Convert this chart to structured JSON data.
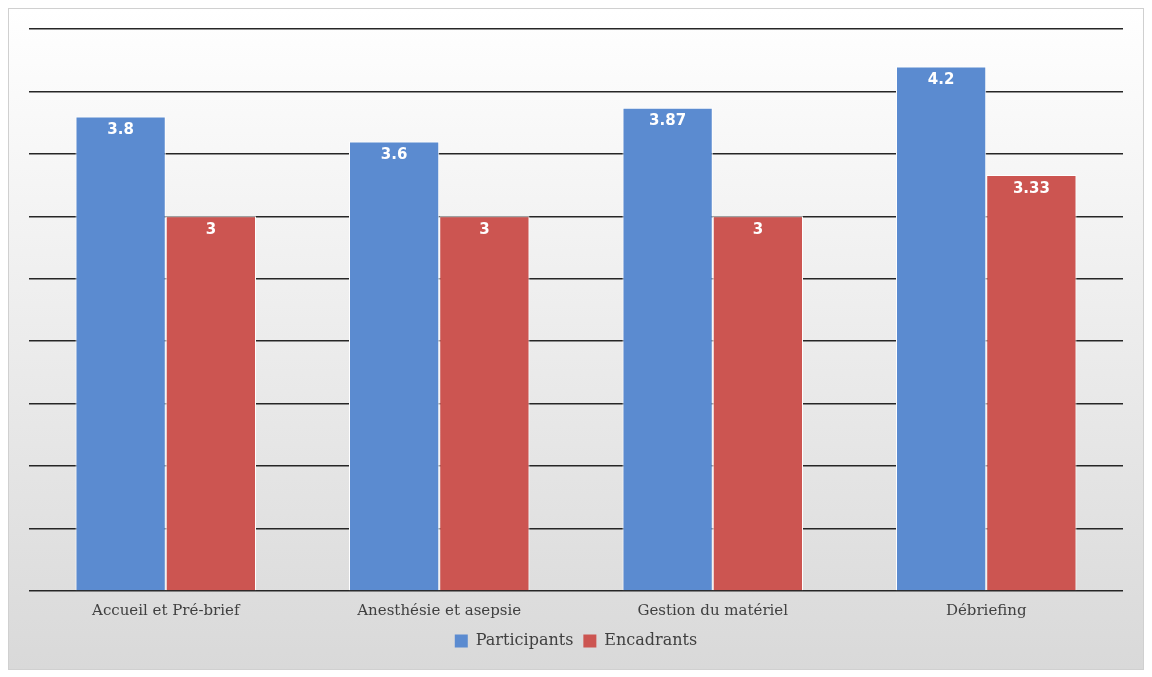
{
  "chart_data": {
    "type": "bar",
    "categories": [
      "Accueil et Pré-brief",
      "Anesthésie et asepsie",
      "Gestion du matériel",
      "Débriefing"
    ],
    "series": [
      {
        "name": "Participants",
        "color": "#5b8bd0",
        "values": [
          3.8,
          3.6,
          3.87,
          4.2
        ]
      },
      {
        "name": "Encadrants",
        "color": "#cc5551",
        "values": [
          3,
          3,
          3,
          3.33
        ]
      }
    ],
    "ylim": [
      0,
      4.5
    ],
    "yticks": [
      {
        "value": 0,
        "label": null
      },
      {
        "value": 0.5,
        "label": null
      },
      {
        "value": 1,
        "label": null
      },
      {
        "value": 1.5,
        "label": null
      },
      {
        "value": 2,
        "label": null
      },
      {
        "value": 2.5,
        "label": null
      },
      {
        "value": 3,
        "label": null
      },
      {
        "value": 3.5,
        "label": null
      },
      {
        "value": 4,
        "label": null
      },
      {
        "value": 4.5,
        "label": null
      }
    ],
    "tick_labels": "x",
    "grid": "y",
    "legend": "bottom",
    "data_labels": true
  }
}
